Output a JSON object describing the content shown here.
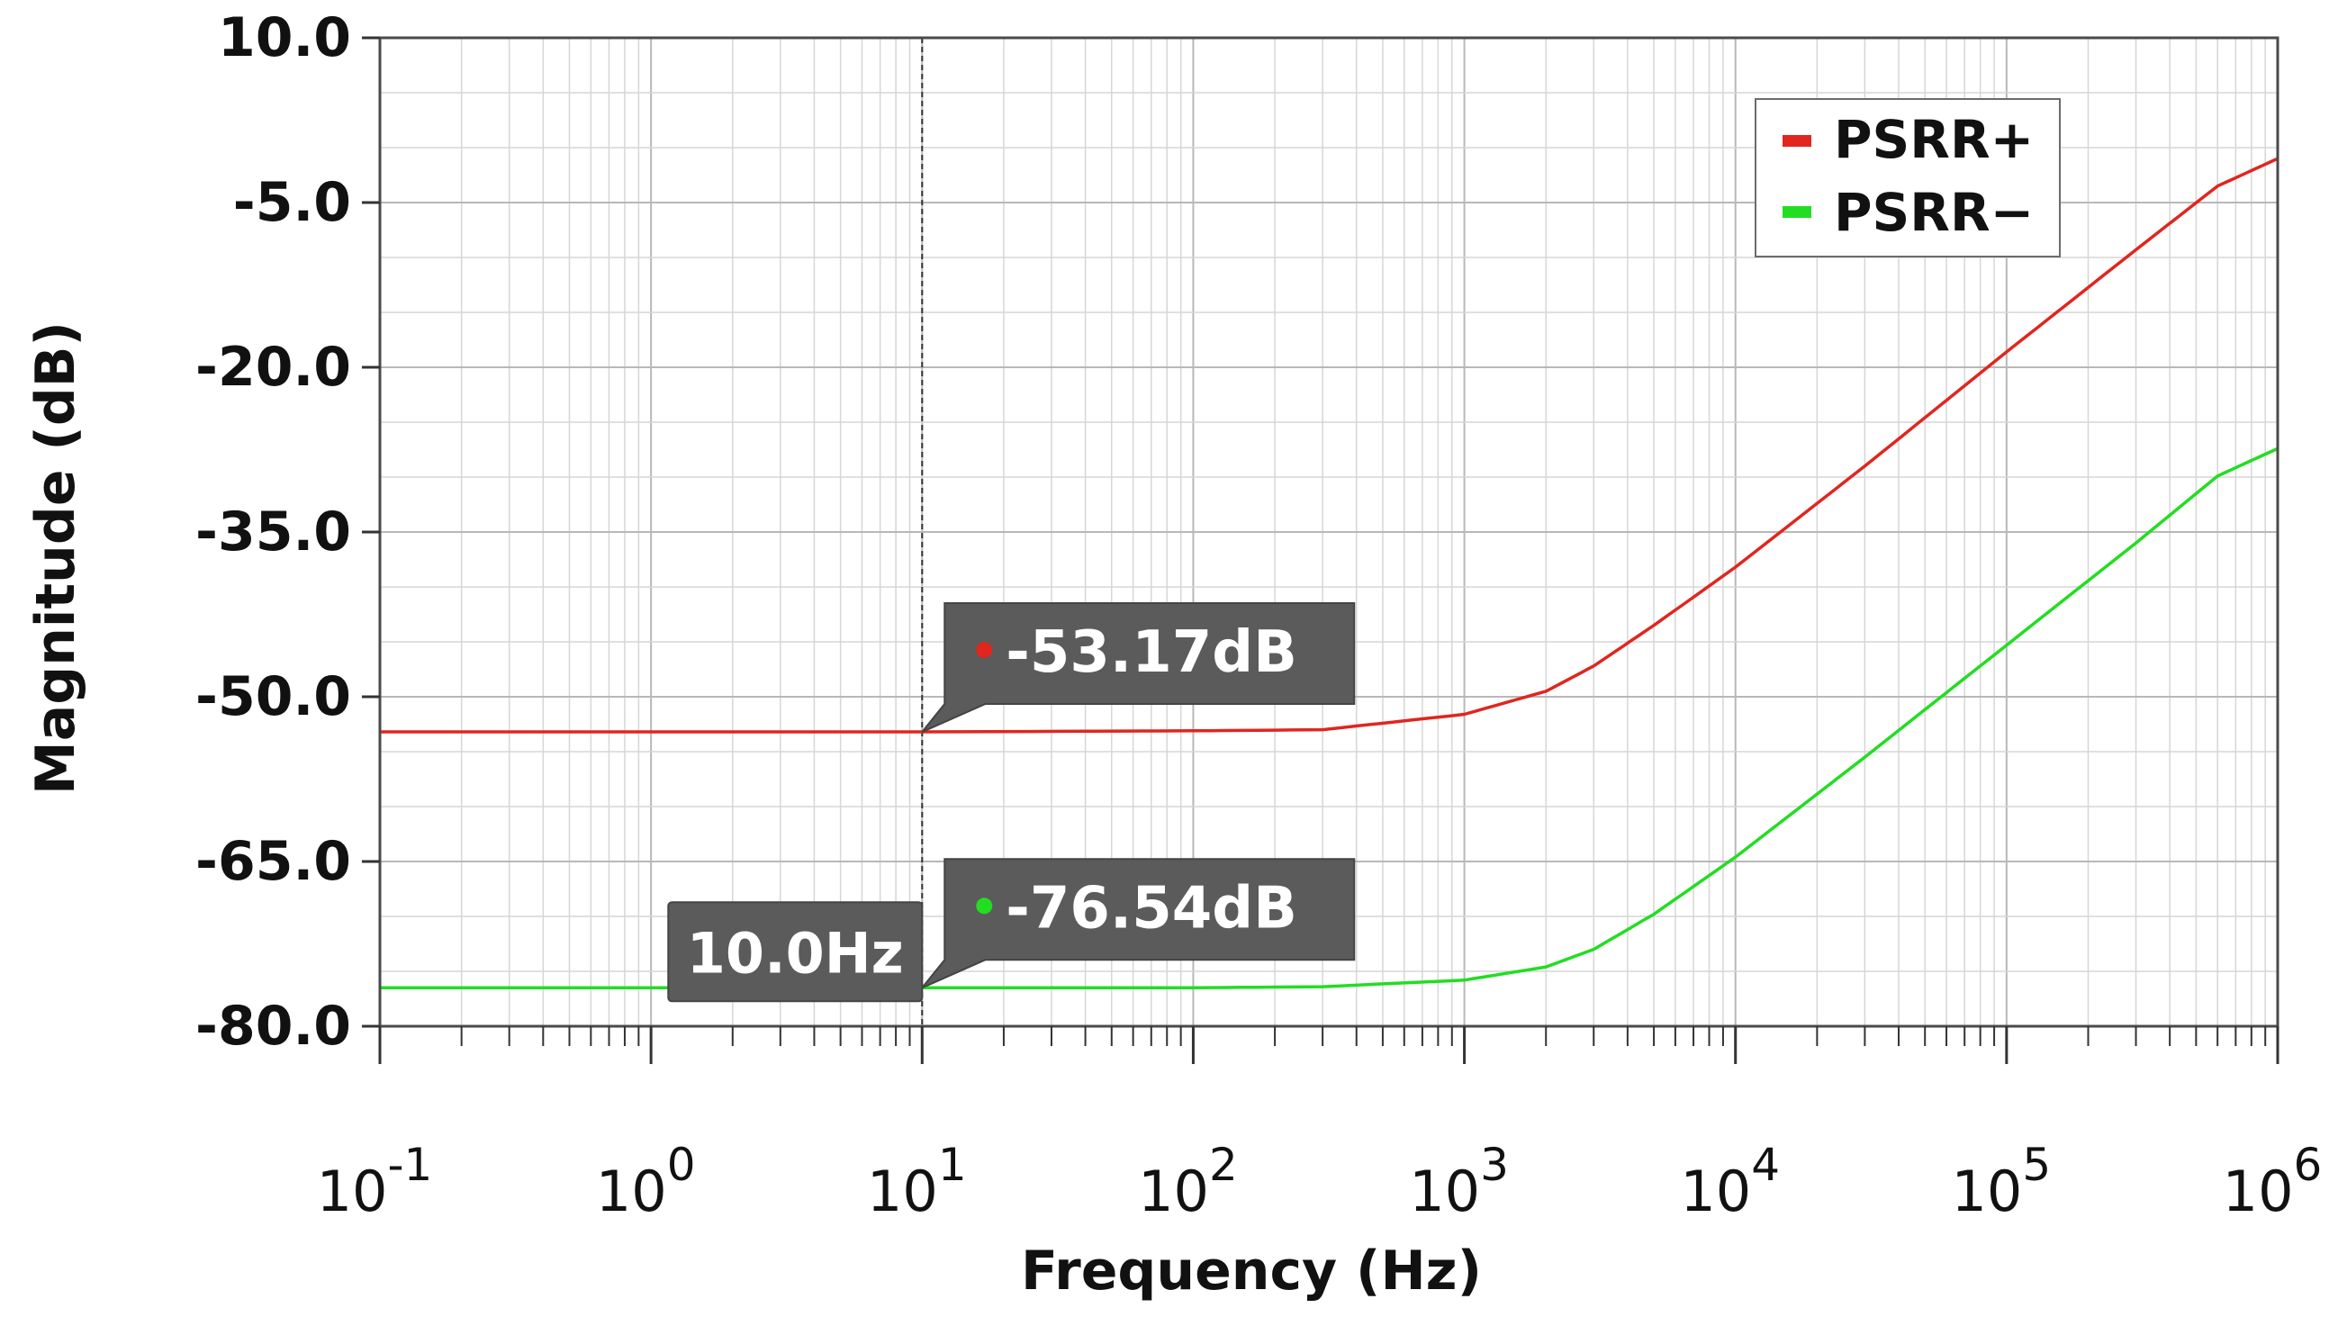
{
  "chart_data": {
    "type": "line",
    "xscale": "log",
    "xlabel": "Frequency (Hz)",
    "ylabel": "Magnitude (dB)",
    "xlim": [
      0.1,
      1000000
    ],
    "ylim": [
      -80.0,
      10.0
    ],
    "yticks": [
      "10.0",
      "-5.0",
      "-20.0",
      "-35.0",
      "-50.0",
      "-65.0",
      "-80.0"
    ],
    "xticks": [
      {
        "base": "10",
        "exp": "-1"
      },
      {
        "base": "10",
        "exp": "0"
      },
      {
        "base": "10",
        "exp": "1"
      },
      {
        "base": "10",
        "exp": "2"
      },
      {
        "base": "10",
        "exp": "3"
      },
      {
        "base": "10",
        "exp": "4"
      },
      {
        "base": "10",
        "exp": "5"
      },
      {
        "base": "10",
        "exp": "6"
      }
    ],
    "grid": true,
    "legend_position": "top-right",
    "series": [
      {
        "name": "PSRR+",
        "color": "#e0261f",
        "x": [
          0.1,
          1,
          10,
          100,
          300,
          1000,
          2000,
          3000,
          5000,
          10000,
          30000,
          100000,
          300000,
          600000,
          1000000
        ],
        "y": [
          -53.2,
          -53.2,
          -53.2,
          -53.1,
          -53.0,
          -51.6,
          -49.5,
          -47.2,
          -43.5,
          -38.2,
          -29.0,
          -18.6,
          -9.3,
          -3.5,
          -1.0
        ]
      },
      {
        "name": "PSRR−",
        "color": "#22dd22",
        "x": [
          0.1,
          1,
          10,
          100,
          300,
          1000,
          2000,
          3000,
          5000,
          10000,
          30000,
          100000,
          300000,
          600000,
          1000000
        ],
        "y": [
          -76.5,
          -76.5,
          -76.5,
          -76.5,
          -76.4,
          -75.8,
          -74.6,
          -73.0,
          -69.8,
          -64.6,
          -55.5,
          -45.3,
          -36.0,
          -29.9,
          -27.4
        ]
      }
    ],
    "cursor": {
      "x": 10,
      "label": "10.0Hz"
    },
    "annotations": [
      {
        "series": "PSRR+",
        "text": "-53.17dB",
        "color": "#e0261f"
      },
      {
        "series": "PSRR−",
        "text": "-76.54dB",
        "color": "#22dd22"
      }
    ]
  }
}
